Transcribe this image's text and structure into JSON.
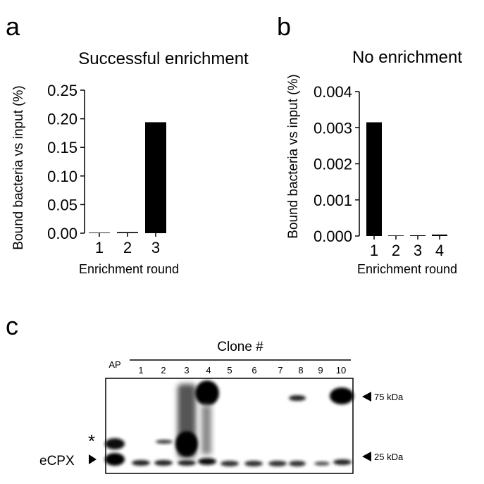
{
  "panels": {
    "a": "a",
    "b": "b",
    "c": "c"
  },
  "chart_data": [
    {
      "type": "bar",
      "title": "Successful enrichment",
      "xlabel": "Enrichment round",
      "ylabel": "Bound bacteria vs input (%)",
      "categories": [
        "1",
        "2",
        "3"
      ],
      "values": [
        0.0,
        0.002,
        0.194
      ],
      "ylim": [
        0,
        0.25
      ],
      "yticks": [
        "0.00",
        "0.05",
        "0.10",
        "0.15",
        "0.20",
        "0.25"
      ],
      "yticks_values": [
        0,
        0.05,
        0.1,
        0.15,
        0.2,
        0.25
      ],
      "bar_color": "#000000"
    },
    {
      "type": "bar",
      "title": "No enrichment",
      "xlabel": "Enrichment round",
      "ylabel": "Bound bacteria vs input (%)",
      "categories": [
        "1",
        "2",
        "3",
        "4"
      ],
      "values": [
        0.00315,
        0.0,
        2e-05,
        4e-05
      ],
      "ylim": [
        0,
        0.004
      ],
      "yticks": [
        "0.000",
        "0.001",
        "0.002",
        "0.003",
        "0.004"
      ],
      "yticks_values": [
        0,
        0.001,
        0.002,
        0.003,
        0.004
      ],
      "bar_color": "#000000"
    }
  ],
  "blot": {
    "header": "Clone #",
    "ap_label": "AP",
    "lanes": [
      "1",
      "2",
      "3",
      "4",
      "5",
      "6",
      "7",
      "8",
      "9",
      "10"
    ],
    "markers": [
      "75 kDa",
      "25 kDa"
    ],
    "asterisk": "*",
    "ecpx_label": "eCPX"
  }
}
